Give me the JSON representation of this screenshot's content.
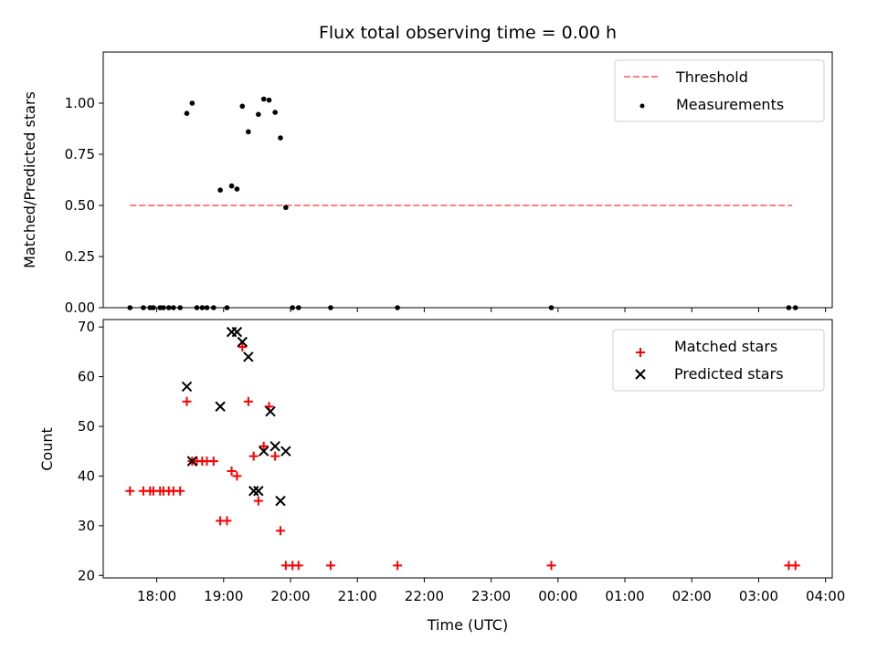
{
  "chart_data": [
    {
      "type": "scatter",
      "title": "Flux total observing time = 0.00 h",
      "xlabel": "",
      "ylabel": "Matched/Predicted stars",
      "xlim": [
        17.2,
        28.1
      ],
      "ylim": [
        0,
        1.25
      ],
      "yticks": [
        0.0,
        0.25,
        0.5,
        0.75,
        1.0
      ],
      "ytick_labels": [
        "0.00",
        "0.25",
        "0.50",
        "0.75",
        "1.00"
      ],
      "xticks": [
        18,
        19,
        20,
        21,
        22,
        23,
        24,
        25,
        26,
        27,
        28
      ],
      "legend": {
        "position": "upper right",
        "entries": [
          "Threshold",
          "Measurements"
        ]
      },
      "series": [
        {
          "name": "Threshold",
          "style": "dashed-line",
          "color": "#ff7f7f",
          "x": [
            17.6,
            27.5
          ],
          "y": [
            0.5,
            0.5
          ]
        },
        {
          "name": "Measurements",
          "style": "dot",
          "color": "#000000",
          "x": [
            17.6,
            17.8,
            17.9,
            17.95,
            18.05,
            18.1,
            18.18,
            18.25,
            18.35,
            18.45,
            18.53,
            18.6,
            18.68,
            18.75,
            18.85,
            18.95,
            19.05,
            19.12,
            19.2,
            19.28,
            19.37,
            19.52,
            19.6,
            19.68,
            19.77,
            19.85,
            19.93,
            20.03,
            20.12,
            20.6,
            21.6,
            23.9,
            27.45,
            27.55
          ],
          "y": [
            0.0,
            0.0,
            0.0,
            0.0,
            0.0,
            0.0,
            0.0,
            0.0,
            0.0,
            0.95,
            1.0,
            0.0,
            0.0,
            0.0,
            0.0,
            0.575,
            0.0,
            0.595,
            0.58,
            0.985,
            0.86,
            0.945,
            1.02,
            1.015,
            0.955,
            0.83,
            0.49,
            0.0,
            0.0,
            0.0,
            0.0,
            0.0,
            0.0,
            0.0
          ]
        }
      ]
    },
    {
      "type": "scatter",
      "title": "",
      "xlabel": "Time (UTC)",
      "ylabel": "Count",
      "xlim": [
        17.2,
        28.1
      ],
      "ylim": [
        19.5,
        71.5
      ],
      "yticks": [
        20,
        30,
        40,
        50,
        60,
        70
      ],
      "ytick_labels": [
        "20",
        "30",
        "40",
        "50",
        "60",
        "70"
      ],
      "xticks": [
        18,
        19,
        20,
        21,
        22,
        23,
        24,
        25,
        26,
        27,
        28
      ],
      "xtick_labels": [
        "18:00",
        "19:00",
        "20:00",
        "21:00",
        "22:00",
        "23:00",
        "00:00",
        "01:00",
        "02:00",
        "03:00",
        "04:00"
      ],
      "legend": {
        "position": "upper right",
        "entries": [
          "Matched stars",
          "Predicted stars"
        ]
      },
      "series": [
        {
          "name": "Matched stars",
          "marker": "+",
          "color": "#ff0000",
          "x": [
            17.6,
            17.8,
            17.9,
            17.95,
            18.05,
            18.1,
            18.18,
            18.25,
            18.35,
            18.45,
            18.53,
            18.6,
            18.68,
            18.75,
            18.85,
            18.95,
            19.05,
            19.12,
            19.2,
            19.28,
            19.37,
            19.45,
            19.52,
            19.6,
            19.68,
            19.77,
            19.85,
            19.93,
            20.03,
            20.12,
            20.6,
            21.6,
            23.9,
            27.45,
            27.55
          ],
          "y": [
            37,
            37,
            37,
            37,
            37,
            37,
            37,
            37,
            37,
            55,
            43,
            43,
            43,
            43,
            43,
            31,
            31,
            41,
            40,
            66,
            55,
            44,
            35,
            46,
            54,
            44,
            29,
            22,
            22,
            22,
            22,
            22,
            22,
            22,
            22
          ]
        },
        {
          "name": "Predicted stars",
          "marker": "x",
          "color": "#000000",
          "x": [
            18.45,
            18.53,
            18.95,
            19.12,
            19.2,
            19.28,
            19.37,
            19.45,
            19.52,
            19.6,
            19.7,
            19.77,
            19.85,
            19.93
          ],
          "y": [
            58,
            43,
            54,
            69,
            69,
            67,
            64,
            37,
            37,
            45,
            53,
            46,
            35,
            45
          ]
        }
      ]
    }
  ]
}
